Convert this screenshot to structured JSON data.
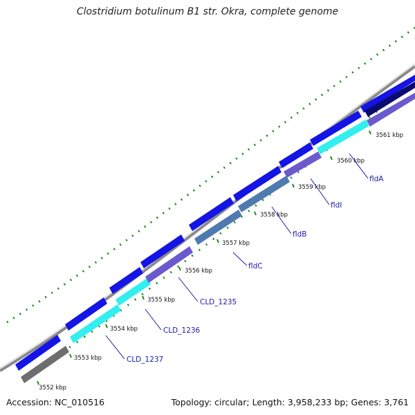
{
  "title": "Clostridium botulinum B1 str. Okra, complete genome",
  "footer": {
    "accession": "Accession: NC_010516",
    "stats": "Topology: circular; Length: 3,958,233 bp; Genes: 3,761"
  },
  "colors": {
    "backbone": "#8a8a8a",
    "gene_blue": "#1414e6",
    "cyan": "#33eeee",
    "slate_purple": "#6a5acd",
    "steel_blue": "#4f7ab0",
    "dark_navy": "#0c0c6e",
    "gray": "#6e6e6e",
    "gc_dots": "#1f8a1f",
    "label_blue": "#1a1aa8"
  },
  "ticks": [
    {
      "label": "3552 kbp"
    },
    {
      "label": "3553 kbp"
    },
    {
      "label": "3554 kbp"
    },
    {
      "label": "3555 kbp"
    },
    {
      "label": "3556 kbp"
    },
    {
      "label": "3557 kbp"
    },
    {
      "label": "3558 kbp"
    },
    {
      "label": "3559 kbp"
    },
    {
      "label": "3560 kbp"
    },
    {
      "label": "3561 kbp"
    }
  ],
  "gene_labels": [
    {
      "label": "CLD_1237"
    },
    {
      "label": "CLD_1236"
    },
    {
      "label": "CLD_1235"
    },
    {
      "label": "fldC"
    },
    {
      "label": "fldB"
    },
    {
      "label": "fldI"
    },
    {
      "label": "fldA"
    }
  ]
}
